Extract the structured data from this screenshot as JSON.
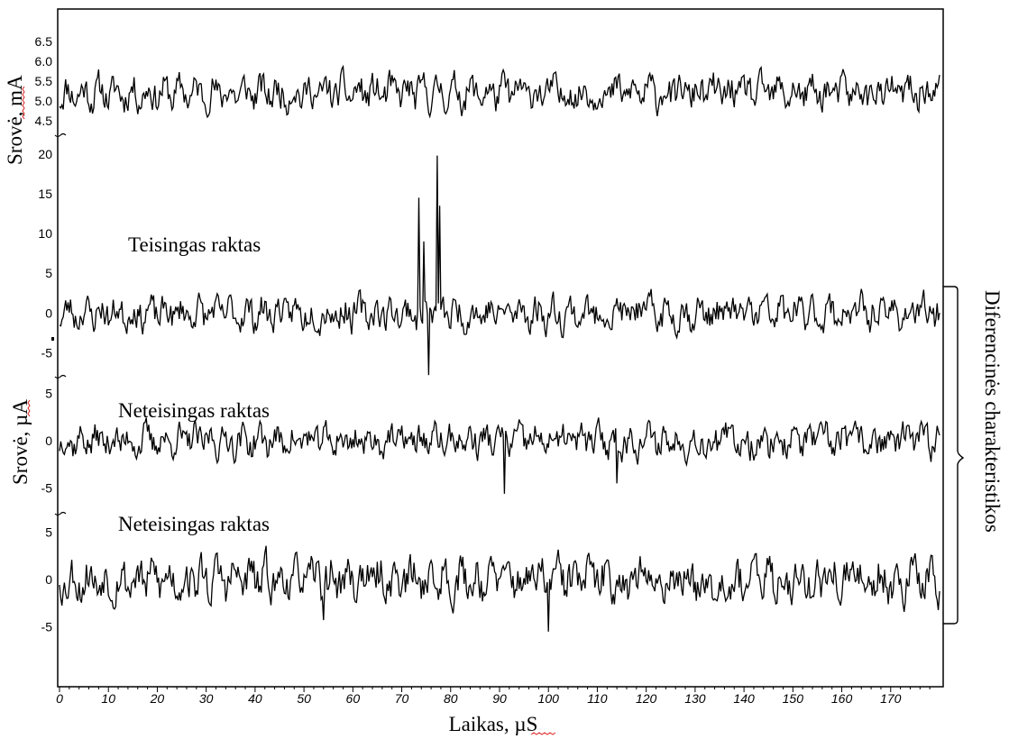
{
  "chart_data": [
    {
      "type": "line",
      "ylabel": "Srovė, mA",
      "xlim": [
        0,
        180
      ],
      "ylim": [
        4.3,
        6.7
      ],
      "yticks": [
        4.5,
        5.0,
        5.5,
        6.0,
        6.5
      ],
      "ytick_labels": [
        "4.5",
        "5.0",
        "5.5",
        "6.0",
        "6.5"
      ],
      "series": [
        {
          "trace": "noise",
          "center": 5.2,
          "amplitude": 0.45,
          "seed": 11,
          "spikes": []
        }
      ]
    },
    {
      "type": "line",
      "label": "Teisingas raktas",
      "ylim": [
        -8,
        21
      ],
      "yticks": [
        -5,
        0,
        5,
        10,
        15,
        20
      ],
      "ytick_labels": [
        "-5",
        "0",
        "5",
        "10",
        "15",
        "20"
      ],
      "series": [
        {
          "trace": "noise",
          "center": 0,
          "amplitude": 2.2,
          "seed": 23,
          "spikes": [
            {
              "x": 73.5,
              "y": 14.5
            },
            {
              "x": 74.5,
              "y": 9.0
            },
            {
              "x": 75.5,
              "y": -7.8
            },
            {
              "x": 77.2,
              "y": 19.8
            },
            {
              "x": 77.8,
              "y": 13.5
            }
          ]
        }
      ]
    },
    {
      "type": "line",
      "label": "Neteisingas raktas",
      "ylabel": "Srovė, µA",
      "ylim": [
        -6,
        6
      ],
      "yticks": [
        -5,
        0,
        5
      ],
      "ytick_labels": [
        "-5",
        "0",
        "5"
      ],
      "series": [
        {
          "trace": "noise",
          "center": 0,
          "amplitude": 1.8,
          "seed": 37,
          "spikes": [
            {
              "x": 91,
              "y": -5.6
            },
            {
              "x": 114,
              "y": -4.5
            }
          ]
        }
      ]
    },
    {
      "type": "line",
      "label": "Neteisingas raktas",
      "ylim": [
        -6,
        6
      ],
      "yticks": [
        -5,
        0,
        5
      ],
      "ytick_labels": [
        "-5",
        "0",
        "5"
      ],
      "series": [
        {
          "trace": "noise",
          "center": 0,
          "amplitude": 2.4,
          "seed": 53,
          "spikes": [
            {
              "x": 100,
              "y": -5.5
            },
            {
              "x": 54,
              "y": -4.3
            }
          ]
        }
      ]
    }
  ],
  "x_axis": {
    "xlabel": "Laikas, µS",
    "xticks": [
      0,
      10,
      20,
      30,
      40,
      50,
      60,
      70,
      80,
      90,
      100,
      110,
      120,
      130,
      140,
      150,
      160,
      170
    ],
    "xtick_labels": [
      "0",
      "10",
      "20",
      "30",
      "40",
      "50",
      "60",
      "70",
      "80",
      "90",
      "100",
      "110",
      "120",
      "130",
      "140",
      "150",
      "160",
      "170"
    ]
  },
  "bracket_label": "Diferencinės charakteristikos"
}
